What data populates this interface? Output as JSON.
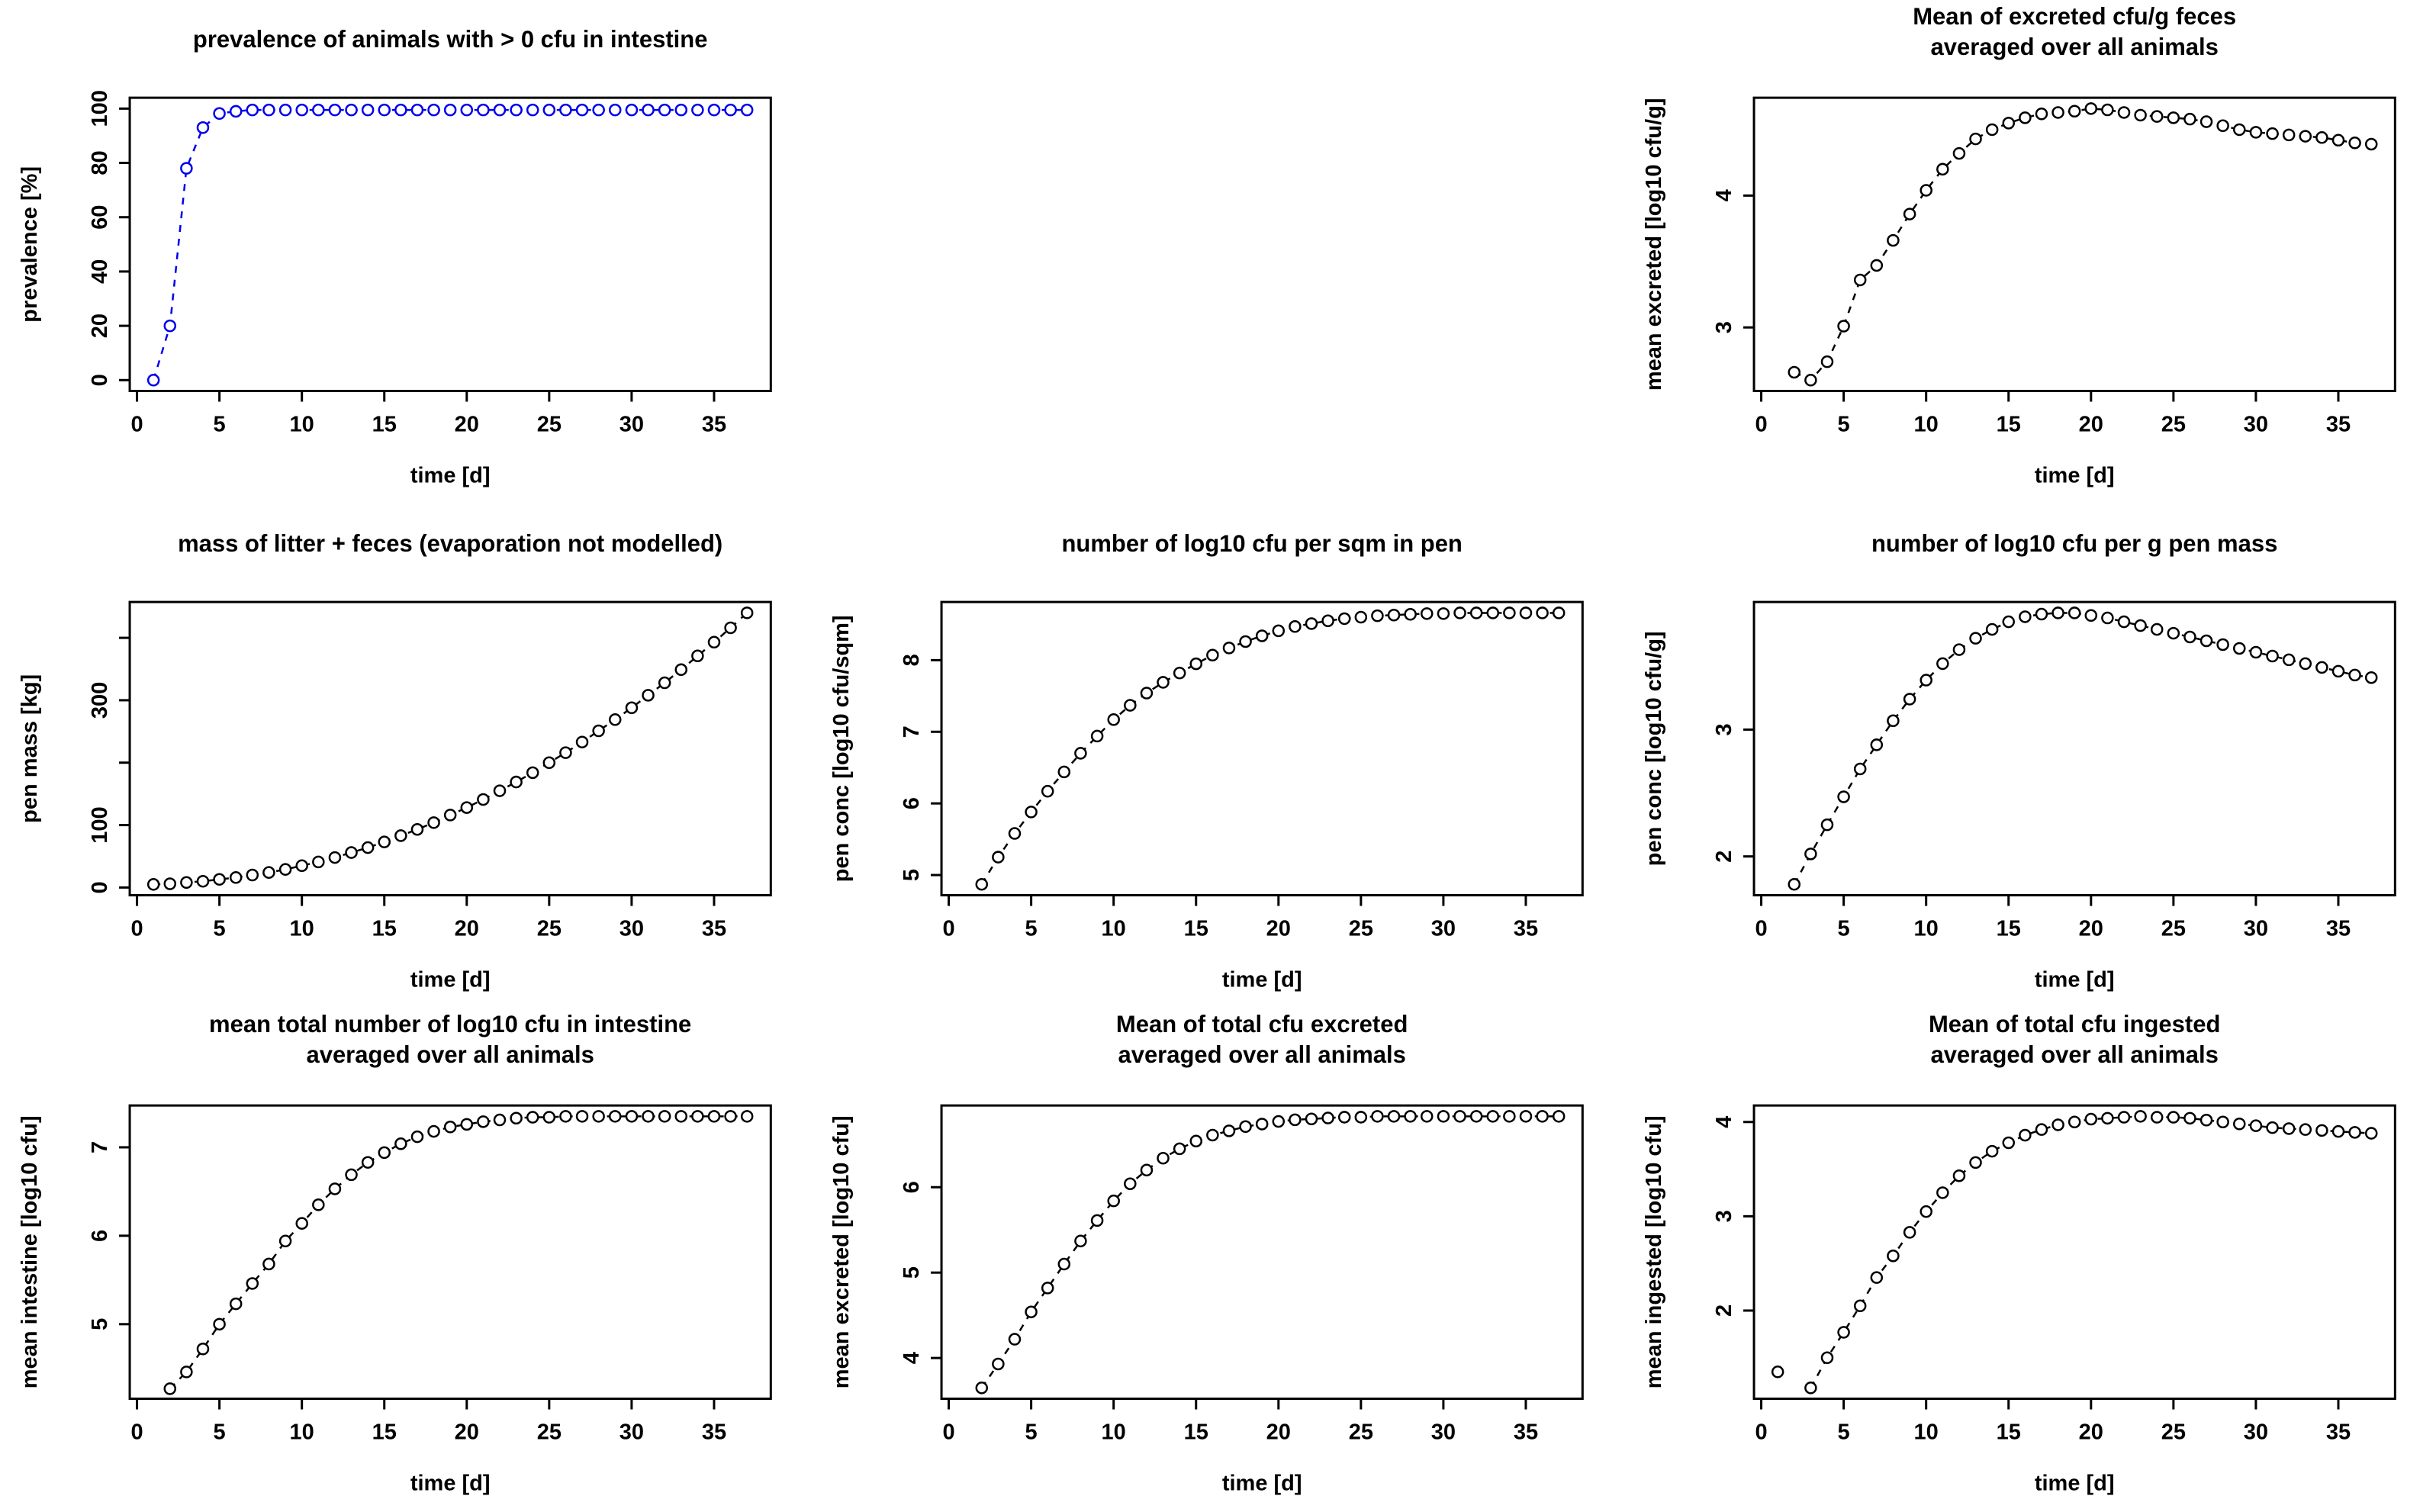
{
  "figure": {
    "background": "#ffffff",
    "frame_color": "#000000",
    "text_color": "#000000",
    "marker": "open-circle",
    "line_style": "dashed",
    "grid_layout": "3 rows x 3 columns, top-middle cell empty"
  },
  "chart_data": [
    {
      "id": "prevalence",
      "type": "scatter",
      "grid": {
        "row": 1,
        "col": 1
      },
      "title_lines": [
        "prevalence of animals with > 0 cfu in intestine"
      ],
      "xlabel": "time [d]",
      "ylabel": "prevalence [%]",
      "color": "#0000ee",
      "xlim": [
        -0.44,
        38.44
      ],
      "ylim": [
        -4,
        104
      ],
      "xticks": [
        0,
        5,
        10,
        15,
        20,
        25,
        30,
        35
      ],
      "yticks": [
        {
          "v": 0,
          "label": "0"
        },
        {
          "v": 20,
          "label": "20"
        },
        {
          "v": 40,
          "label": "40"
        },
        {
          "v": 60,
          "label": "60"
        },
        {
          "v": 80,
          "label": "80"
        },
        {
          "v": 100,
          "label": "100"
        }
      ],
      "x": [
        1,
        2,
        3,
        4,
        5,
        6,
        7,
        8,
        9,
        10,
        11,
        12,
        13,
        14,
        15,
        16,
        17,
        18,
        19,
        20,
        21,
        22,
        23,
        24,
        25,
        26,
        27,
        28,
        29,
        30,
        31,
        32,
        33,
        34,
        35,
        36,
        37
      ],
      "y": [
        0,
        20,
        78,
        93,
        98.2,
        99,
        99.5,
        99.5,
        99.5,
        99.5,
        99.5,
        99.5,
        99.5,
        99.5,
        99.5,
        99.5,
        99.5,
        99.5,
        99.5,
        99.5,
        99.5,
        99.5,
        99.5,
        99.5,
        99.5,
        99.5,
        99.5,
        99.5,
        99.5,
        99.5,
        99.5,
        99.5,
        99.5,
        99.5,
        99.5,
        99.5,
        99.5
      ]
    },
    {
      "id": "mean-excreted-per-g",
      "type": "scatter",
      "grid": {
        "row": 1,
        "col": 3
      },
      "title_lines": [
        "Mean of excreted cfu/g feces",
        "averaged over all animals"
      ],
      "xlabel": "time [d]",
      "ylabel": "mean excreted [log10 cfu/g]",
      "color": "#000000",
      "xlim": [
        -0.44,
        38.44
      ],
      "ylim": [
        2.518,
        4.742
      ],
      "xticks": [
        0,
        5,
        10,
        15,
        20,
        25,
        30,
        35
      ],
      "yticks": [
        {
          "v": 3,
          "label": "3"
        },
        {
          "v": 4,
          "label": "4"
        }
      ],
      "x": [
        1,
        2,
        3,
        4,
        5,
        6,
        7,
        8,
        9,
        10,
        11,
        12,
        13,
        14,
        15,
        16,
        17,
        18,
        19,
        20,
        21,
        22,
        23,
        24,
        25,
        26,
        27,
        28,
        29,
        30,
        31,
        32,
        33,
        34,
        35,
        36,
        37
      ],
      "y": [
        null,
        2.66,
        2.6,
        2.74,
        3.01,
        3.36,
        3.47,
        3.66,
        3.86,
        4.04,
        4.2,
        4.32,
        4.43,
        4.5,
        4.55,
        4.59,
        4.62,
        4.63,
        4.64,
        4.66,
        4.65,
        4.63,
        4.61,
        4.6,
        4.59,
        4.58,
        4.56,
        4.53,
        4.5,
        4.48,
        4.47,
        4.46,
        4.45,
        4.44,
        4.42,
        4.4,
        4.39
      ]
    },
    {
      "id": "pen-mass",
      "type": "scatter",
      "grid": {
        "row": 2,
        "col": 1
      },
      "title_lines": [
        "mass of litter + feces (evaporation not modelled)"
      ],
      "xlabel": "time [d]",
      "ylabel": "pen mass [kg]",
      "color": "#000000",
      "xlim": [
        -0.44,
        38.44
      ],
      "ylim": [
        -12.4,
        457.4
      ],
      "xticks": [
        0,
        5,
        10,
        15,
        20,
        25,
        30,
        35
      ],
      "yticks": [
        {
          "v": 0,
          "label": "0"
        },
        {
          "v": 100,
          "label": "100"
        },
        {
          "v": 200,
          "label": ""
        },
        {
          "v": 300,
          "label": "300"
        },
        {
          "v": 400,
          "label": ""
        }
      ],
      "x": [
        1,
        2,
        3,
        4,
        5,
        6,
        7,
        8,
        9,
        10,
        11,
        12,
        13,
        14,
        15,
        16,
        17,
        18,
        19,
        20,
        21,
        22,
        23,
        24,
        25,
        26,
        27,
        28,
        29,
        30,
        31,
        32,
        33,
        34,
        35,
        36,
        37
      ],
      "y": [
        5,
        6,
        8,
        10,
        13,
        16,
        20,
        24,
        29,
        35,
        41,
        48,
        56,
        64,
        73,
        83,
        93,
        104,
        116,
        128,
        141,
        155,
        169,
        184,
        200,
        216,
        233,
        251,
        269,
        288,
        308,
        328,
        349,
        371,
        393,
        416,
        440
      ]
    },
    {
      "id": "pen-conc-sqm",
      "type": "scatter",
      "grid": {
        "row": 2,
        "col": 2
      },
      "title_lines": [
        "number of log10 cfu per sqm in pen"
      ],
      "xlabel": "time [d]",
      "ylabel": "pen conc [log10 cfu/sqm]",
      "color": "#000000",
      "xlim": [
        -0.44,
        38.44
      ],
      "ylim": [
        4.718,
        8.812
      ],
      "xticks": [
        0,
        5,
        10,
        15,
        20,
        25,
        30,
        35
      ],
      "yticks": [
        {
          "v": 5,
          "label": "5"
        },
        {
          "v": 6,
          "label": "6"
        },
        {
          "v": 7,
          "label": "7"
        },
        {
          "v": 8,
          "label": "8"
        }
      ],
      "x": [
        1,
        2,
        3,
        4,
        5,
        6,
        7,
        8,
        9,
        10,
        11,
        12,
        13,
        14,
        15,
        16,
        17,
        18,
        19,
        20,
        21,
        22,
        23,
        24,
        25,
        26,
        27,
        28,
        29,
        30,
        31,
        32,
        33,
        34,
        35,
        36,
        37
      ],
      "y": [
        null,
        4.87,
        5.25,
        5.58,
        5.88,
        6.17,
        6.44,
        6.7,
        6.94,
        7.17,
        7.37,
        7.54,
        7.69,
        7.82,
        7.95,
        8.07,
        8.17,
        8.26,
        8.34,
        8.41,
        8.47,
        8.51,
        8.55,
        8.58,
        8.6,
        8.62,
        8.63,
        8.64,
        8.65,
        8.65,
        8.66,
        8.66,
        8.66,
        8.66,
        8.66,
        8.66,
        8.66
      ]
    },
    {
      "id": "pen-conc-g",
      "type": "scatter",
      "grid": {
        "row": 2,
        "col": 3
      },
      "title_lines": [
        "number of log10 cfu per g pen mass"
      ],
      "xlabel": "time [d]",
      "ylabel": "pen conc [log10 cfu/g]",
      "color": "#000000",
      "xlim": [
        -0.44,
        38.44
      ],
      "ylim": [
        1.694,
        4.006
      ],
      "xticks": [
        0,
        5,
        10,
        15,
        20,
        25,
        30,
        35
      ],
      "yticks": [
        {
          "v": 2,
          "label": "2"
        },
        {
          "v": 3,
          "label": "3"
        }
      ],
      "x": [
        1,
        2,
        3,
        4,
        5,
        6,
        7,
        8,
        9,
        10,
        11,
        12,
        13,
        14,
        15,
        16,
        17,
        18,
        19,
        20,
        21,
        22,
        23,
        24,
        25,
        26,
        27,
        28,
        29,
        30,
        31,
        32,
        33,
        34,
        35,
        36,
        37
      ],
      "y": [
        null,
        1.78,
        2.02,
        2.25,
        2.47,
        2.69,
        2.88,
        3.07,
        3.24,
        3.39,
        3.52,
        3.63,
        3.72,
        3.79,
        3.85,
        3.89,
        3.91,
        3.92,
        3.92,
        3.9,
        3.88,
        3.85,
        3.82,
        3.79,
        3.76,
        3.73,
        3.7,
        3.67,
        3.64,
        3.61,
        3.58,
        3.55,
        3.52,
        3.49,
        3.46,
        3.43,
        3.41
      ]
    },
    {
      "id": "mean-intestine",
      "type": "scatter",
      "grid": {
        "row": 3,
        "col": 1
      },
      "title_lines": [
        "mean total number of log10 cfu in intestine",
        "averaged over all animals"
      ],
      "xlabel": "time [d]",
      "ylabel": "mean intestine [log10 cfu]",
      "color": "#000000",
      "xlim": [
        -0.44,
        38.44
      ],
      "ylim": [
        4.157,
        7.473
      ],
      "xticks": [
        0,
        5,
        10,
        15,
        20,
        25,
        30,
        35
      ],
      "yticks": [
        {
          "v": 5,
          "label": "5"
        },
        {
          "v": 6,
          "label": "6"
        },
        {
          "v": 7,
          "label": "7"
        }
      ],
      "x": [
        1,
        2,
        3,
        4,
        5,
        6,
        7,
        8,
        9,
        10,
        11,
        12,
        13,
        14,
        15,
        16,
        17,
        18,
        19,
        20,
        21,
        22,
        23,
        24,
        25,
        26,
        27,
        28,
        29,
        30,
        31,
        32,
        33,
        34,
        35,
        36,
        37
      ],
      "y": [
        null,
        4.27,
        4.46,
        4.72,
        5.0,
        5.23,
        5.46,
        5.68,
        5.94,
        6.14,
        6.35,
        6.53,
        6.69,
        6.83,
        6.94,
        7.04,
        7.12,
        7.18,
        7.23,
        7.26,
        7.29,
        7.31,
        7.33,
        7.34,
        7.34,
        7.35,
        7.35,
        7.35,
        7.35,
        7.35,
        7.35,
        7.35,
        7.35,
        7.35,
        7.35,
        7.35,
        7.35
      ]
    },
    {
      "id": "mean-excreted-total",
      "type": "scatter",
      "grid": {
        "row": 3,
        "col": 2
      },
      "title_lines": [
        "Mean of total cfu excreted",
        "averaged over all animals"
      ],
      "xlabel": "time [d]",
      "ylabel": "mean excreted [log10 cfu]",
      "color": "#000000",
      "xlim": [
        -0.44,
        38.44
      ],
      "ylim": [
        3.523,
        6.957
      ],
      "xticks": [
        0,
        5,
        10,
        15,
        20,
        25,
        30,
        35
      ],
      "yticks": [
        {
          "v": 4,
          "label": "4"
        },
        {
          "v": 5,
          "label": "5"
        },
        {
          "v": 6,
          "label": "6"
        }
      ],
      "x": [
        1,
        2,
        3,
        4,
        5,
        6,
        7,
        8,
        9,
        10,
        11,
        12,
        13,
        14,
        15,
        16,
        17,
        18,
        19,
        20,
        21,
        22,
        23,
        24,
        25,
        26,
        27,
        28,
        29,
        30,
        31,
        32,
        33,
        34,
        35,
        36,
        37
      ],
      "y": [
        null,
        3.65,
        3.93,
        4.22,
        4.54,
        4.82,
        5.1,
        5.37,
        5.61,
        5.84,
        6.04,
        6.2,
        6.34,
        6.45,
        6.54,
        6.61,
        6.66,
        6.71,
        6.74,
        6.77,
        6.79,
        6.8,
        6.81,
        6.82,
        6.82,
        6.83,
        6.83,
        6.83,
        6.83,
        6.83,
        6.83,
        6.83,
        6.83,
        6.83,
        6.83,
        6.83,
        6.83
      ]
    },
    {
      "id": "mean-ingested",
      "type": "scatter",
      "grid": {
        "row": 3,
        "col": 3
      },
      "title_lines": [
        "Mean of total cfu ingested",
        "averaged over all animals"
      ],
      "xlabel": "time [d]",
      "ylabel": "mean ingested [log10 cfu]",
      "color": "#000000",
      "xlim": [
        -0.44,
        38.44
      ],
      "ylim": [
        1.065,
        4.175
      ],
      "xticks": [
        0,
        5,
        10,
        15,
        20,
        25,
        30,
        35
      ],
      "yticks": [
        {
          "v": 2,
          "label": "2"
        },
        {
          "v": 3,
          "label": "3"
        },
        {
          "v": 4,
          "label": "4"
        }
      ],
      "x": [
        1,
        2,
        3,
        4,
        5,
        6,
        7,
        8,
        9,
        10,
        11,
        12,
        13,
        14,
        15,
        16,
        17,
        18,
        19,
        20,
        21,
        22,
        23,
        24,
        25,
        26,
        27,
        28,
        29,
        30,
        31,
        32,
        33,
        34,
        35,
        36,
        37
      ],
      "y": [
        1.35,
        null,
        1.18,
        1.5,
        1.77,
        2.05,
        2.35,
        2.58,
        2.83,
        3.05,
        3.25,
        3.43,
        3.57,
        3.69,
        3.78,
        3.86,
        3.92,
        3.97,
        4.0,
        4.03,
        4.04,
        4.05,
        4.06,
        4.05,
        4.05,
        4.04,
        4.02,
        4.0,
        3.98,
        3.96,
        3.94,
        3.93,
        3.92,
        3.91,
        3.9,
        3.89,
        3.88
      ]
    }
  ]
}
